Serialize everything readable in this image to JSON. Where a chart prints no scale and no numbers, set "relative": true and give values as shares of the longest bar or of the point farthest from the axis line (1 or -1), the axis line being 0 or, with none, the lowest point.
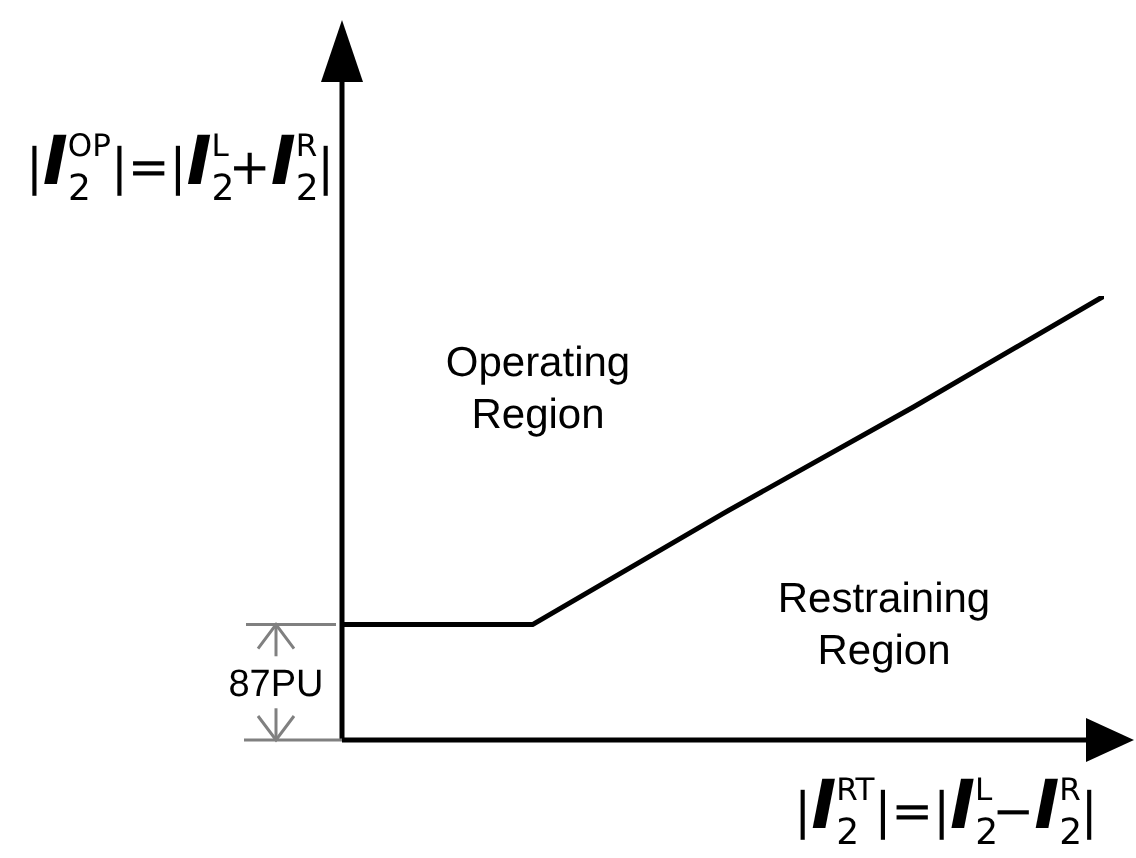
{
  "chart_data": {
    "type": "line",
    "relative": true,
    "xlabel": "|I$_{2}$$^{RT}$|=|I$_{2}$$^{L}$−I$_{2}$$^{R}$|",
    "ylabel": "|I$_{2}$$^{OP}$|=|I$_{2}$$^{L}$+I$_{2}$$^{R}$|",
    "categories": [
      null,
      null,
      null,
      null,
      null
    ],
    "values": [
      0.26,
      0.26,
      0.51,
      0.75,
      1
    ],
    "color": "#000000",
    "marker": "none",
    "line_style": "solid",
    "annotations": [
      "Operating Region",
      "Restraining Region",
      "87PU"
    ]
  }
}
